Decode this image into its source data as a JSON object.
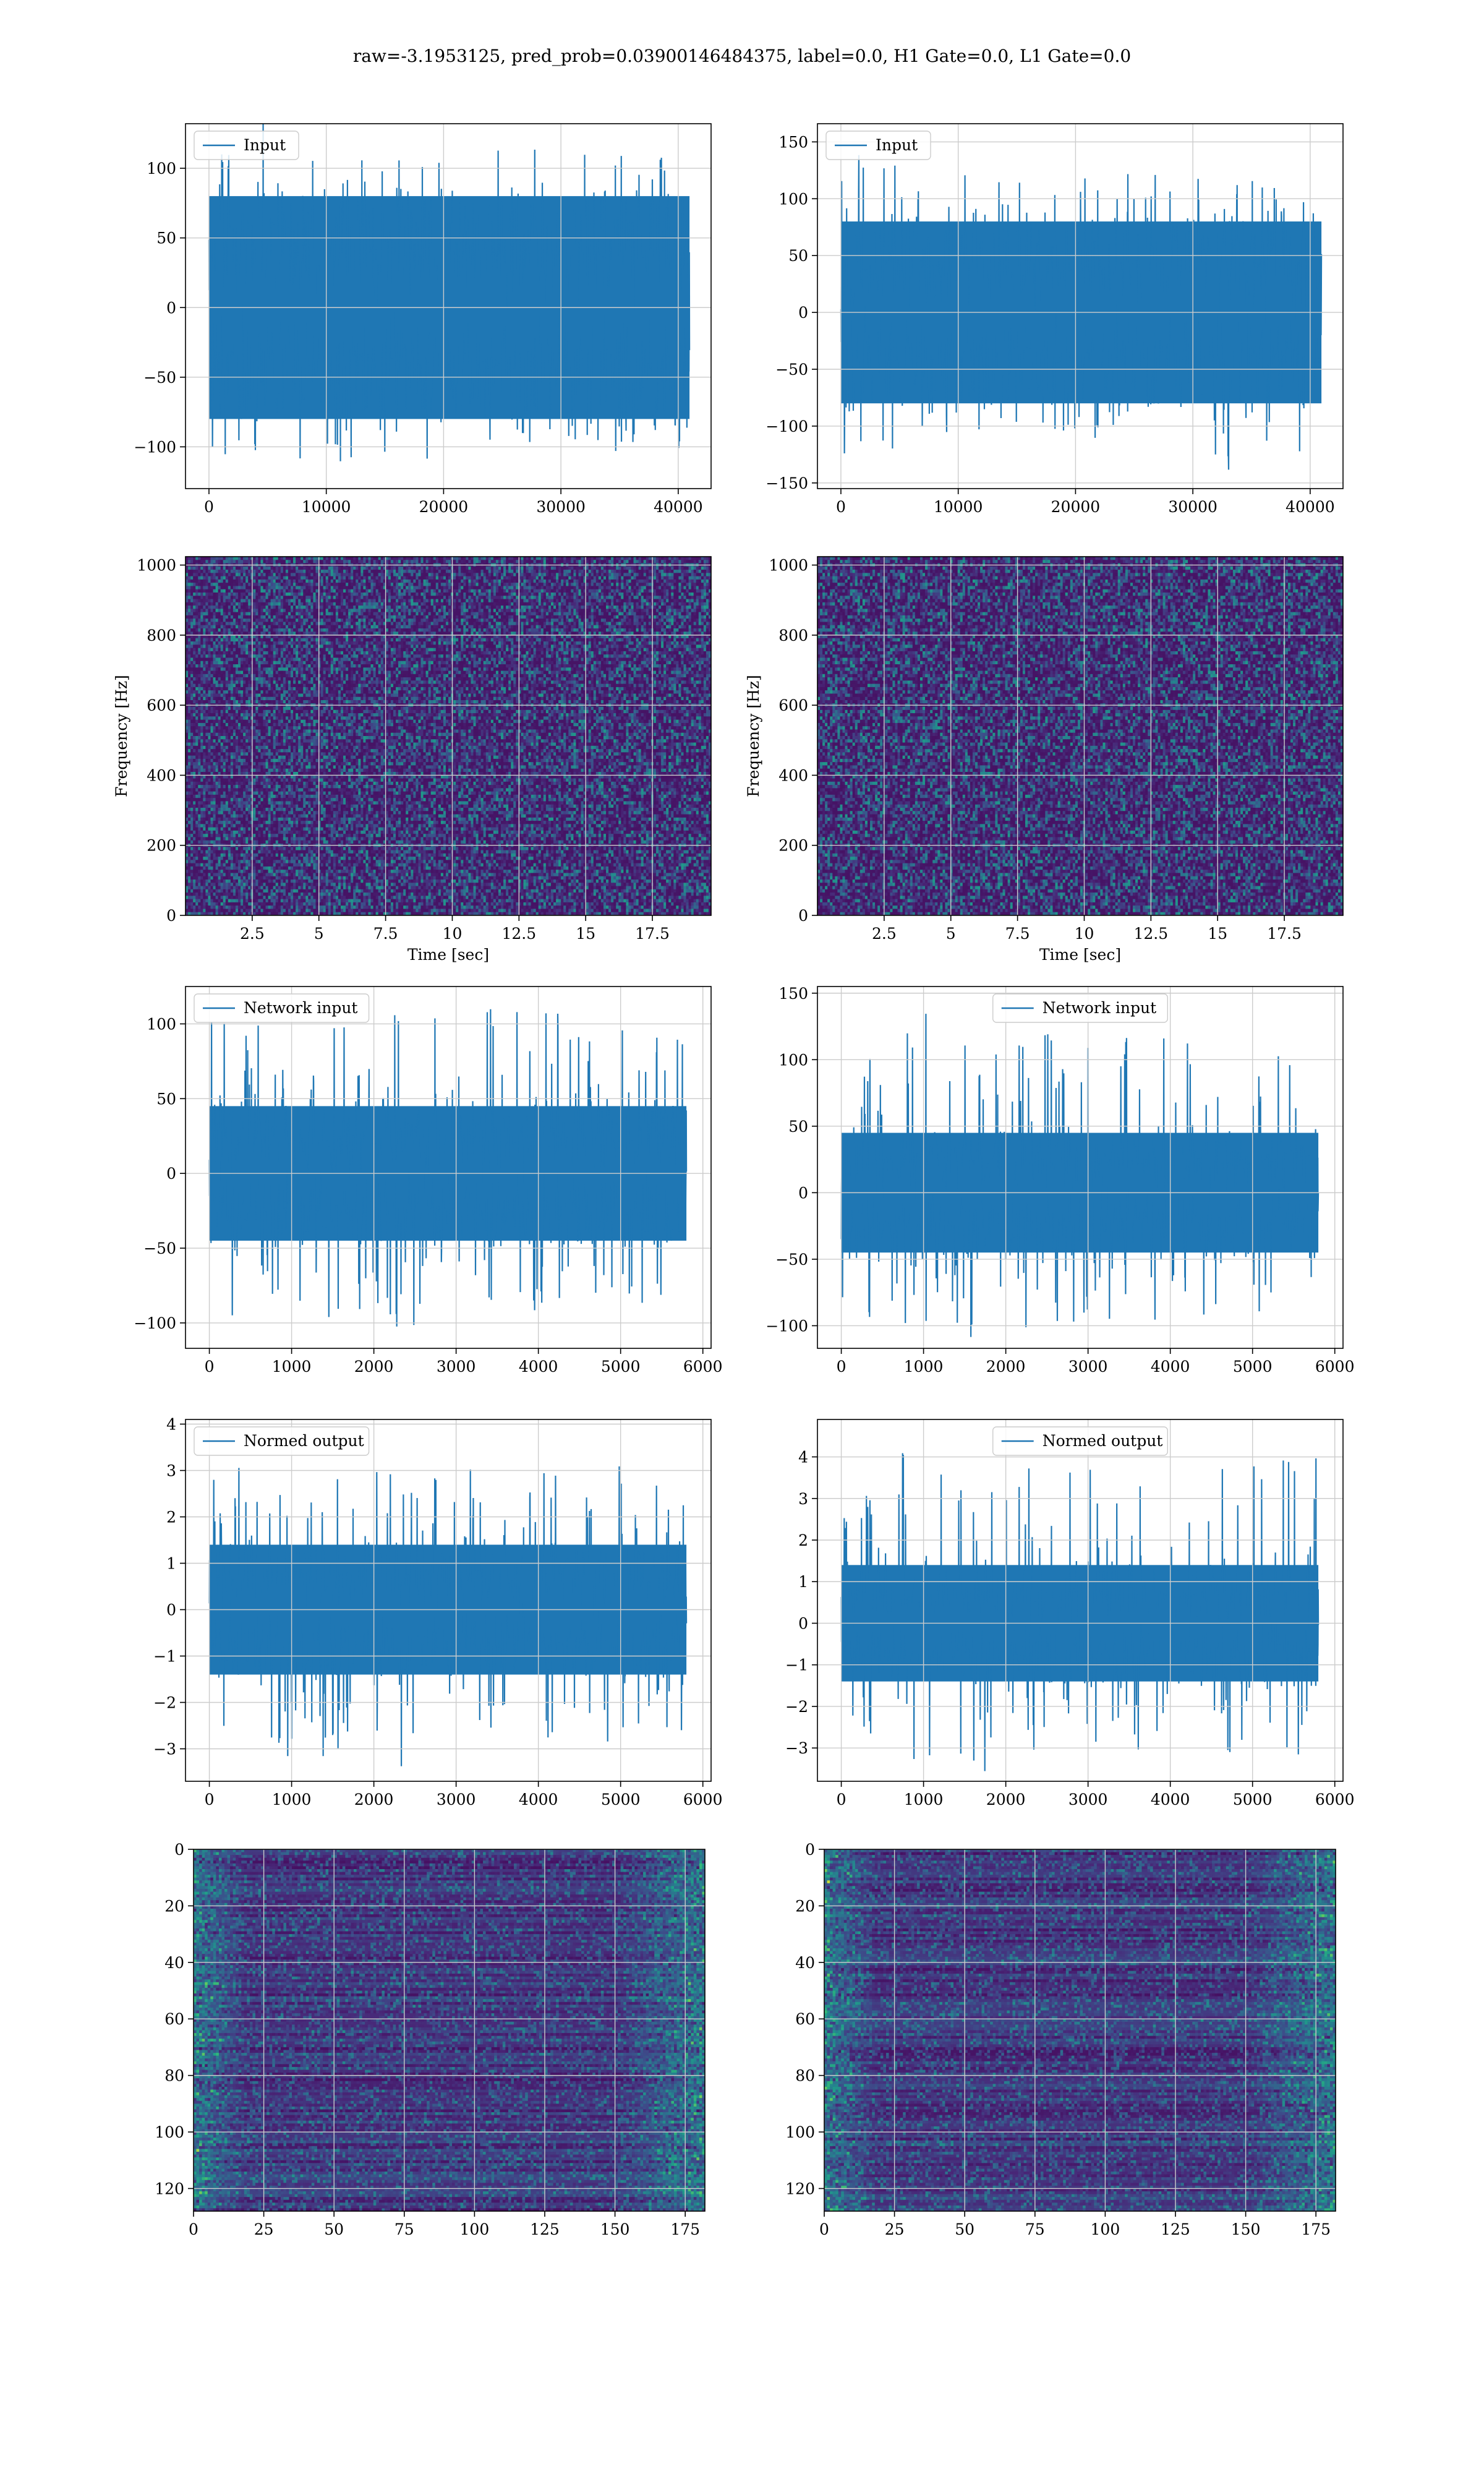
{
  "figure": {
    "title": "raw=-3.1953125, pred_prob=0.03900146484375, label=0.0, H1 Gate=0.0, L1 Gate=0.0"
  },
  "colors": {
    "series": "#1f77b4",
    "grid": "#cccccc",
    "spine": "#000000",
    "viridis_low": "#440154",
    "viridis_mid": "#21918c",
    "viridis_high": "#fde725"
  },
  "chart_data": [
    {
      "id": "h1-input",
      "type": "line",
      "legend": "Input",
      "legend_loc": "upper-left",
      "xlim": [
        -2000,
        42800
      ],
      "ylim": [
        -130,
        132
      ],
      "xticks": [
        0,
        10000,
        20000,
        30000,
        40000
      ],
      "yticks": [
        -100,
        -50,
        0,
        50,
        100
      ],
      "x": [
        0,
        40960
      ],
      "band_abs": 80,
      "peaks_max": [
        113,
        108,
        118,
        112,
        123,
        120,
        115,
        110
      ],
      "peaks_min": [
        -112,
        -121,
        -113,
        -110,
        -115,
        -120,
        -110,
        -108
      ],
      "grid": true
    },
    {
      "id": "l1-input",
      "type": "line",
      "legend": "Input",
      "legend_loc": "upper-left",
      "xlim": [
        -2000,
        42800
      ],
      "ylim": [
        -155,
        166
      ],
      "xticks": [
        0,
        10000,
        20000,
        30000,
        40000
      ],
      "yticks": [
        -150,
        -100,
        -50,
        0,
        50,
        100,
        150
      ],
      "x": [
        0,
        40960
      ],
      "band_abs": 80,
      "peaks_max": [
        152,
        130,
        120,
        128,
        125,
        133,
        120,
        118
      ],
      "peaks_min": [
        -115,
        -113,
        -110,
        -108,
        -112,
        -114,
        -139,
        -126
      ],
      "grid": true
    },
    {
      "id": "h1-spectrogram",
      "type": "heatmap",
      "xlabel": "Time [sec]",
      "ylabel": "Frequency [Hz]",
      "xlim": [
        0,
        19.7
      ],
      "ylim": [
        0,
        1024
      ],
      "xticks": [
        2.5,
        5.0,
        7.5,
        10.0,
        12.5,
        15.0,
        17.5
      ],
      "yticks": [
        0,
        200,
        400,
        600,
        800,
        1000
      ],
      "colormap": "viridis",
      "grid": true
    },
    {
      "id": "l1-spectrogram",
      "type": "heatmap",
      "xlabel": "Time [sec]",
      "ylabel": "Frequency [Hz]",
      "xlim": [
        0,
        19.7
      ],
      "ylim": [
        0,
        1024
      ],
      "xticks": [
        2.5,
        5.0,
        7.5,
        10.0,
        12.5,
        15.0,
        17.5
      ],
      "yticks": [
        0,
        200,
        400,
        600,
        800,
        1000
      ],
      "colormap": "viridis",
      "grid": true
    },
    {
      "id": "h1-network-input",
      "type": "line",
      "legend": "Network input",
      "legend_loc": "upper-left",
      "xlim": [
        -290,
        6100
      ],
      "ylim": [
        -117,
        125
      ],
      "xticks": [
        0,
        1000,
        2000,
        3000,
        4000,
        5000,
        6000
      ],
      "yticks": [
        -100,
        -50,
        0,
        50,
        100
      ],
      "x": [
        0,
        5800
      ],
      "band_abs": 45,
      "peaks_max": [
        105,
        97,
        100,
        110,
        115,
        110,
        100,
        103
      ],
      "peaks_min": [
        -95,
        -100,
        -98,
        -105,
        -97,
        -95,
        -92,
        -100
      ],
      "grid": true
    },
    {
      "id": "l1-network-input",
      "type": "line",
      "legend": "Network input",
      "legend_loc": "upper-center",
      "xlim": [
        -290,
        6100
      ],
      "ylim": [
        -117,
        155
      ],
      "xticks": [
        0,
        1000,
        2000,
        3000,
        4000,
        5000,
        6000
      ],
      "yticks": [
        -100,
        -50,
        0,
        50,
        100,
        150
      ],
      "x": [
        0,
        5800
      ],
      "band_abs": 45,
      "peaks_max": [
        105,
        140,
        118,
        123,
        125,
        118,
        115,
        110
      ],
      "peaks_min": [
        -100,
        -103,
        -110,
        -102,
        -98,
        -100,
        -95,
        -103
      ],
      "grid": true
    },
    {
      "id": "h1-normed-output",
      "type": "line",
      "legend": "Normed output",
      "legend_loc": "upper-left",
      "xlim": [
        -290,
        6100
      ],
      "ylim": [
        -3.7,
        4.1
      ],
      "xticks": [
        0,
        1000,
        2000,
        3000,
        4000,
        5000,
        6000
      ],
      "yticks": [
        -3,
        -2,
        -1,
        0,
        1,
        2,
        3,
        4
      ],
      "x": [
        0,
        5800
      ],
      "band_abs": 1.4,
      "peaks_max": [
        3.3,
        2.9,
        3.6,
        3.4,
        3.5,
        3.5,
        3.1,
        3.3
      ],
      "peaks_min": [
        -2.9,
        -3.2,
        -3.0,
        -3.4,
        -2.9,
        -3.0,
        -3.1,
        -2.7
      ],
      "grid": true
    },
    {
      "id": "l1-normed-output",
      "type": "line",
      "legend": "Normed output",
      "legend_loc": "upper-center",
      "xlim": [
        -290,
        6100
      ],
      "ylim": [
        -3.8,
        4.9
      ],
      "xticks": [
        0,
        1000,
        2000,
        3000,
        4000,
        5000,
        6000
      ],
      "yticks": [
        -3,
        -2,
        -1,
        0,
        1,
        2,
        3,
        4
      ],
      "x": [
        0,
        5800
      ],
      "band_abs": 1.4,
      "peaks_max": [
        3.1,
        4.5,
        3.9,
        3.8,
        3.7,
        4.2,
        3.9,
        4.0
      ],
      "peaks_min": [
        -3.0,
        -3.3,
        -3.6,
        -3.2,
        -3.1,
        -3.0,
        -3.2,
        -3.2
      ],
      "grid": true
    },
    {
      "id": "h1-cqt",
      "type": "heatmap",
      "xlim": [
        0,
        182
      ],
      "ylim": [
        128,
        0
      ],
      "xticks": [
        0,
        25,
        50,
        75,
        100,
        125,
        150,
        175
      ],
      "yticks": [
        0,
        20,
        40,
        60,
        80,
        100,
        120
      ],
      "colormap": "viridis",
      "grid": true
    },
    {
      "id": "l1-cqt",
      "type": "heatmap",
      "xlim": [
        0,
        182
      ],
      "ylim": [
        128,
        0
      ],
      "xticks": [
        0,
        25,
        50,
        75,
        100,
        125,
        150,
        175
      ],
      "yticks": [
        0,
        20,
        40,
        60,
        80,
        100,
        120
      ],
      "colormap": "viridis",
      "grid": true
    }
  ]
}
